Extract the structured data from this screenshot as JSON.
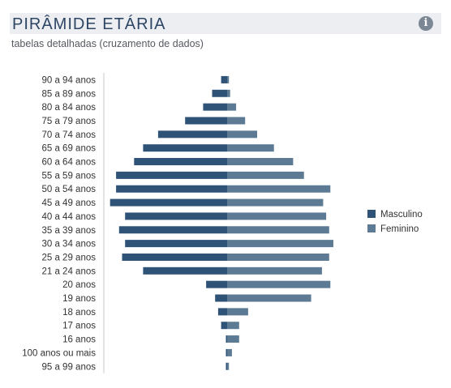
{
  "header": {
    "title": "PIRÂMIDE ETÁRIA",
    "subtitle": "tabelas detalhadas (cruzamento de dados)",
    "info_icon": "info-icon"
  },
  "colors": {
    "masculino": "#2f5277",
    "feminino": "#5c7a93",
    "header_bg": "#eceef2",
    "title": "#2e4664"
  },
  "chart_data": {
    "type": "bar",
    "orientation": "horizontal-diverging",
    "title": "",
    "categories": [
      "90 a 94 anos",
      "85 a 89 anos",
      "80 a 84 anos",
      "75 a 79 anos",
      "70 a 74 anos",
      "65 a 69 anos",
      "60 a 64 anos",
      "55 a 59 anos",
      "50 a 54 anos",
      "45 a 49 anos",
      "40 a 44 anos",
      "35 a 39 anos",
      "30 a 34 anos",
      "25 a 29 anos",
      "21 a 24 anos",
      "20 anos",
      "19 anos",
      "18 anos",
      "17 anos",
      "16 anos",
      "100 anos ou mais",
      "95 a 99 anos"
    ],
    "series": [
      {
        "name": "Masculino",
        "values": [
          1.0,
          2.5,
          4.0,
          7.0,
          11.5,
          14.0,
          15.5,
          18.5,
          18.5,
          19.5,
          17.0,
          18.0,
          17.0,
          17.5,
          14.0,
          3.5,
          2.0,
          1.5,
          1.0,
          0.2,
          0.2,
          0.2
        ]
      },
      {
        "name": "Feminino",
        "values": [
          0.3,
          0.5,
          1.5,
          3.0,
          5.0,
          7.8,
          11.0,
          12.8,
          17.2,
          16.0,
          16.5,
          17.0,
          17.7,
          17.0,
          15.8,
          17.2,
          14.0,
          3.5,
          2.0,
          2.0,
          0.8,
          0.3
        ]
      }
    ],
    "xlim": [
      -20,
      20
    ],
    "legend_position": "right",
    "grid": false
  }
}
